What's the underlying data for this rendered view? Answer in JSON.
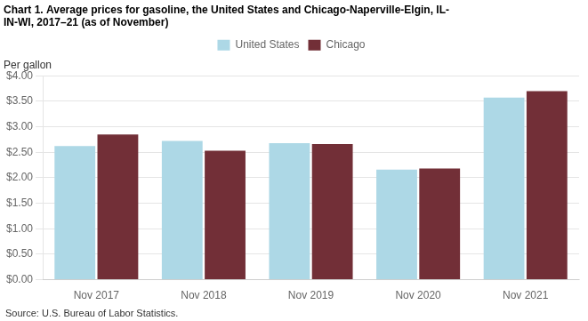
{
  "chart_data": {
    "type": "bar",
    "title": [
      "Chart 1. Average prices for gasoline, the United States and Chicago-Naperville-Elgin, IL-",
      "IN-WI, 2017–21 (as of November)"
    ],
    "ylabel": "Per gallon",
    "source": "Source: U.S. Bureau of Labor Statistics.",
    "categories": [
      "Nov 2017",
      "Nov 2018",
      "Nov 2019",
      "Nov 2020",
      "Nov 2021"
    ],
    "series": [
      {
        "name": "United States",
        "color": "#add8e6",
        "values": [
          2.62,
          2.72,
          2.68,
          2.16,
          3.57
        ]
      },
      {
        "name": "Chicago",
        "color": "#722f37",
        "values": [
          2.85,
          2.53,
          2.66,
          2.18,
          3.7
        ]
      }
    ],
    "ylim": [
      0,
      4.0
    ],
    "yticks": [
      {
        "value": 0.0,
        "label": "$0.00"
      },
      {
        "value": 0.5,
        "label": "$0.50"
      },
      {
        "value": 1.0,
        "label": "$1.00"
      },
      {
        "value": 1.5,
        "label": "$1.50"
      },
      {
        "value": 2.0,
        "label": "$2.00"
      },
      {
        "value": 2.5,
        "label": "$2.50"
      },
      {
        "value": 3.0,
        "label": "$3.00"
      },
      {
        "value": 3.5,
        "label": "$3.50"
      },
      {
        "value": 4.0,
        "label": "$4.00"
      }
    ],
    "grid": true,
    "legend": "top"
  }
}
